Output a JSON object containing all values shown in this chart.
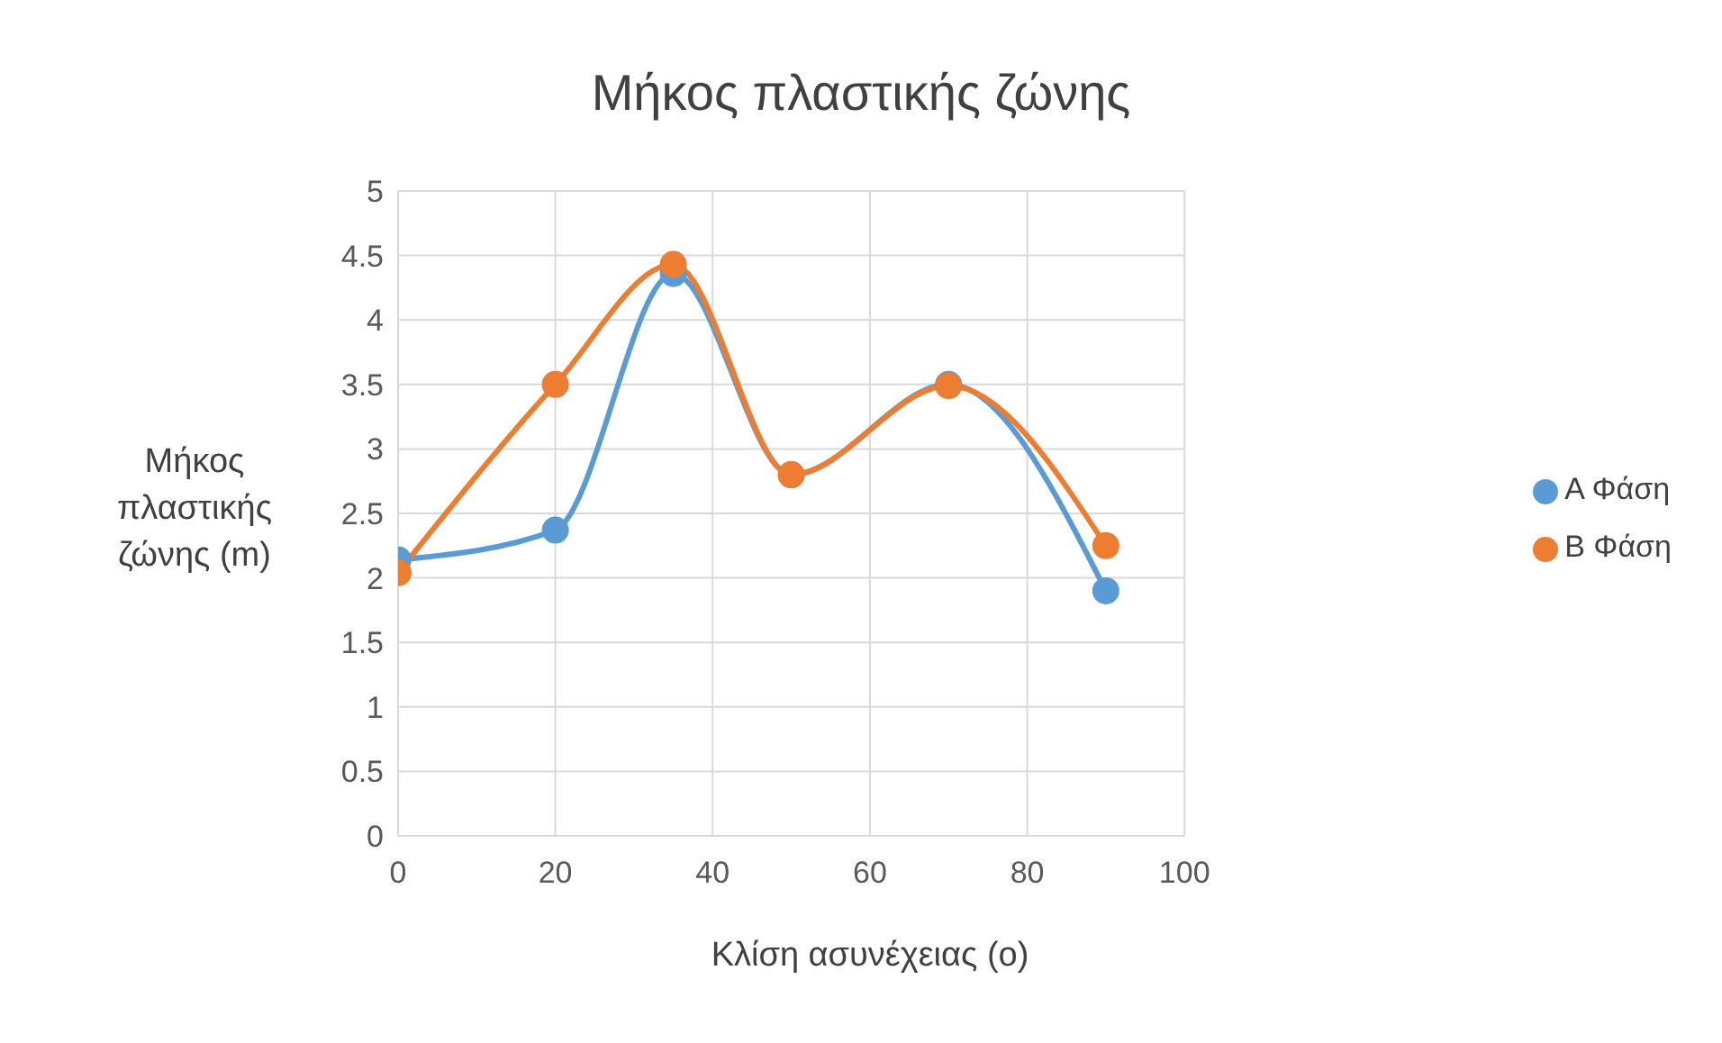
{
  "chart_data": {
    "type": "line",
    "title": "Μήκος πλαστικής ζώνης",
    "xlabel": "Κλίση ασυνέχειας (ο)",
    "ylabel": "Μήκος πλαστικής ζώνης (m)",
    "x": [
      0,
      20,
      35,
      50,
      70,
      90
    ],
    "series": [
      {
        "name": "Α Φάση",
        "color": "#5b9bd5",
        "values": [
          2.14,
          2.37,
          4.36,
          2.8,
          3.5,
          1.9
        ]
      },
      {
        "name": "Β Φάση",
        "color": "#ed7d31",
        "values": [
          2.04,
          3.5,
          4.43,
          2.8,
          3.49,
          2.25
        ]
      }
    ],
    "xlim": [
      0,
      100
    ],
    "xticks": [
      0,
      20,
      40,
      60,
      80,
      100
    ],
    "ylim": [
      0,
      5
    ],
    "yticks": [
      0,
      0.5,
      1,
      1.5,
      2,
      2.5,
      3,
      3.5,
      4,
      4.5,
      5
    ],
    "grid": true,
    "legend": "right",
    "marker": "circle",
    "line_style": "solid"
  }
}
